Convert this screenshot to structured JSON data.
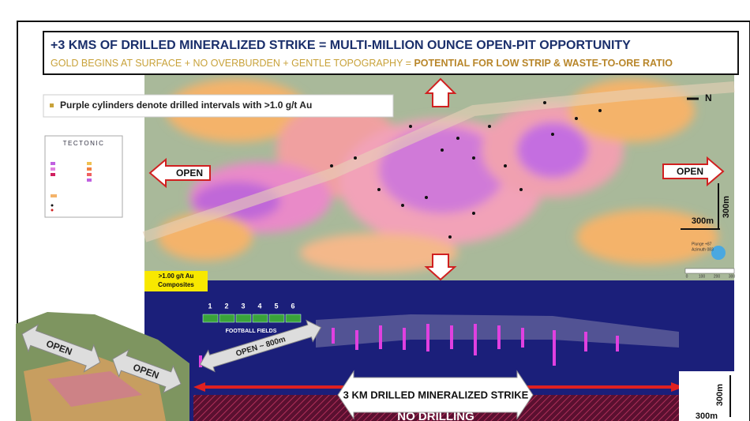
{
  "header": {
    "title": "+3 KMS OF DRILLED MINERALIZED STRIKE = MULTI-MILLION OUNCE OPEN-PIT OPPORTUNITY",
    "subtitle": "GOLD BEGINS AT SURFACE + NO OVERBURDEN + GENTLE TOPOGRAPHY = ",
    "subtitle_highlight": "POTENTIAL FOR LOW STRIP & WASTE-TO-ORE RATIO"
  },
  "note": "Purple cylinders denote drilled intervals with >1.0 g/t Au",
  "legend": {
    "brand": "TECTONIC"
  },
  "map": {
    "north": "N",
    "open_left": "OPEN",
    "open_right": "OPEN",
    "scale_vertical": "300m",
    "scale_horizontal": "300m",
    "plunge": "Plunge +87",
    "azimuth": "Azimuth 083",
    "scale_ticks": [
      "0",
      "100",
      "200",
      "300"
    ]
  },
  "section": {
    "badge": [
      ">1.00 g/t Au",
      "Composites"
    ],
    "field_numbers": [
      "1",
      "2",
      "3",
      "4",
      "5",
      "6"
    ],
    "fields_label": "FOOTBALL FIELDS",
    "open_800": "OPEN ~ 800m",
    "strike": "3 KM DRILLED MINERALIZED STRIKE",
    "no_drilling": "NO DRILLING",
    "scale_vertical": "300m",
    "scale_horizontal": "300m"
  },
  "terrain": {
    "open_upper": "OPEN",
    "open_lower": "OPEN"
  }
}
